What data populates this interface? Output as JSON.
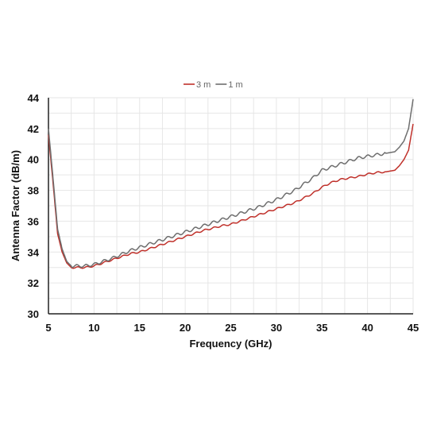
{
  "chart_data": {
    "type": "line",
    "title": "",
    "xlabel": "Frequency  (GHz)",
    "ylabel": "Antenna Factor (dB/m)",
    "xlim": [
      5,
      45
    ],
    "ylim": [
      30,
      44
    ],
    "xticks": [
      5,
      10,
      15,
      20,
      25,
      30,
      35,
      40,
      45
    ],
    "yticks": [
      30,
      32,
      34,
      36,
      38,
      40,
      42,
      44
    ],
    "xtick_labels": [
      "5",
      "10",
      "15",
      "20",
      "25",
      "30",
      "35",
      "40",
      "45"
    ],
    "ytick_labels": [
      "30",
      "32",
      "34",
      "36",
      "38",
      "40",
      "42",
      "44"
    ],
    "grid": true,
    "legend_position": "top-center",
    "series": [
      {
        "name": "3 m",
        "color": "#c0312b",
        "x": [
          5,
          5.5,
          6,
          6.5,
          7,
          7.5,
          8,
          9,
          10,
          11,
          12,
          13,
          14,
          15,
          16,
          17,
          18,
          19,
          20,
          21,
          22,
          23,
          24,
          25,
          26,
          27,
          28,
          29,
          30,
          31,
          32,
          33,
          34,
          35,
          36,
          37,
          38,
          39,
          40,
          41,
          42,
          43,
          43.5,
          44,
          44.5,
          45
        ],
        "y": [
          41.6,
          38.5,
          35.2,
          34.0,
          33.3,
          33.0,
          33.0,
          33.0,
          33.1,
          33.3,
          33.5,
          33.7,
          33.9,
          34.0,
          34.2,
          34.4,
          34.6,
          34.8,
          35.0,
          35.2,
          35.4,
          35.55,
          35.7,
          35.8,
          36.0,
          36.2,
          36.4,
          36.6,
          36.8,
          37.0,
          37.2,
          37.5,
          37.8,
          38.2,
          38.5,
          38.7,
          38.8,
          38.9,
          39.05,
          39.15,
          39.2,
          39.3,
          39.6,
          40.0,
          40.6,
          42.3
        ]
      },
      {
        "name": "1 m",
        "color": "#6e6e6e",
        "x": [
          5,
          5.5,
          6,
          6.5,
          7,
          7.5,
          8,
          9,
          10,
          11,
          12,
          13,
          14,
          15,
          16,
          17,
          18,
          19,
          20,
          21,
          22,
          23,
          24,
          25,
          26,
          27,
          28,
          29,
          30,
          31,
          32,
          33,
          34,
          35,
          36,
          37,
          38,
          39,
          40,
          41,
          42,
          43,
          43.5,
          44,
          44.5,
          45
        ],
        "y": [
          42.0,
          38.8,
          35.5,
          34.2,
          33.4,
          33.1,
          33.1,
          33.1,
          33.2,
          33.4,
          33.6,
          33.85,
          34.1,
          34.3,
          34.5,
          34.7,
          34.9,
          35.1,
          35.3,
          35.5,
          35.7,
          35.9,
          36.1,
          36.3,
          36.5,
          36.7,
          36.9,
          37.15,
          37.4,
          37.7,
          38.0,
          38.4,
          38.8,
          39.3,
          39.5,
          39.7,
          39.9,
          40.1,
          40.2,
          40.3,
          40.4,
          40.5,
          40.8,
          41.2,
          42.0,
          43.9
        ]
      }
    ]
  }
}
